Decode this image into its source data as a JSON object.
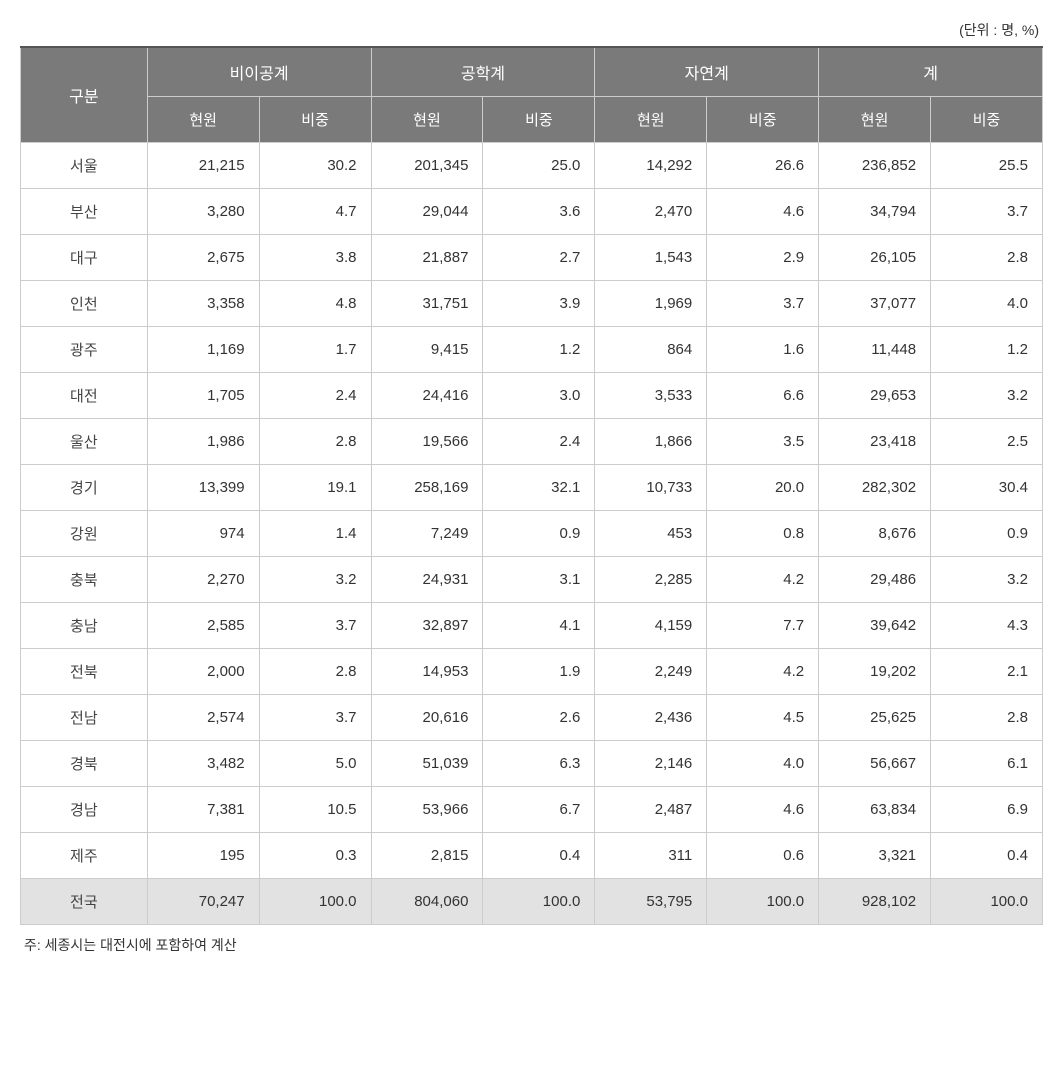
{
  "table": {
    "type": "table",
    "unit_label": "(단위 : 명, %)",
    "footnote": "주: 세종시는 대전시에 포함하여 계산",
    "header": {
      "group_label": "구분",
      "groups": [
        "비이공계",
        "공학계",
        "자연계",
        "계"
      ],
      "sub_headers": [
        "현원",
        "비중"
      ]
    },
    "colors": {
      "header_bg": "#7a7a7a",
      "header_text": "#ffffff",
      "border": "#cccccc",
      "top_border": "#555555",
      "total_row_bg": "#e2e2e2",
      "body_bg": "#ffffff",
      "text": "#333333"
    },
    "column_widths": [
      "12.4%",
      "10.95%",
      "10.95%",
      "10.95%",
      "10.95%",
      "10.95%",
      "10.95%",
      "10.95%",
      "10.95%"
    ],
    "font_sizes": {
      "header": 16,
      "sub_header": 15,
      "body": 15,
      "unit": 14,
      "footnote": 14
    },
    "rows": [
      {
        "label": "서울",
        "values": [
          "21,215",
          "30.2",
          "201,345",
          "25.0",
          "14,292",
          "26.6",
          "236,852",
          "25.5"
        ],
        "total": false
      },
      {
        "label": "부산",
        "values": [
          "3,280",
          "4.7",
          "29,044",
          "3.6",
          "2,470",
          "4.6",
          "34,794",
          "3.7"
        ],
        "total": false
      },
      {
        "label": "대구",
        "values": [
          "2,675",
          "3.8",
          "21,887",
          "2.7",
          "1,543",
          "2.9",
          "26,105",
          "2.8"
        ],
        "total": false
      },
      {
        "label": "인천",
        "values": [
          "3,358",
          "4.8",
          "31,751",
          "3.9",
          "1,969",
          "3.7",
          "37,077",
          "4.0"
        ],
        "total": false
      },
      {
        "label": "광주",
        "values": [
          "1,169",
          "1.7",
          "9,415",
          "1.2",
          "864",
          "1.6",
          "11,448",
          "1.2"
        ],
        "total": false
      },
      {
        "label": "대전",
        "values": [
          "1,705",
          "2.4",
          "24,416",
          "3.0",
          "3,533",
          "6.6",
          "29,653",
          "3.2"
        ],
        "total": false
      },
      {
        "label": "울산",
        "values": [
          "1,986",
          "2.8",
          "19,566",
          "2.4",
          "1,866",
          "3.5",
          "23,418",
          "2.5"
        ],
        "total": false
      },
      {
        "label": "경기",
        "values": [
          "13,399",
          "19.1",
          "258,169",
          "32.1",
          "10,733",
          "20.0",
          "282,302",
          "30.4"
        ],
        "total": false
      },
      {
        "label": "강원",
        "values": [
          "974",
          "1.4",
          "7,249",
          "0.9",
          "453",
          "0.8",
          "8,676",
          "0.9"
        ],
        "total": false
      },
      {
        "label": "충북",
        "values": [
          "2,270",
          "3.2",
          "24,931",
          "3.1",
          "2,285",
          "4.2",
          "29,486",
          "3.2"
        ],
        "total": false
      },
      {
        "label": "충남",
        "values": [
          "2,585",
          "3.7",
          "32,897",
          "4.1",
          "4,159",
          "7.7",
          "39,642",
          "4.3"
        ],
        "total": false
      },
      {
        "label": "전북",
        "values": [
          "2,000",
          "2.8",
          "14,953",
          "1.9",
          "2,249",
          "4.2",
          "19,202",
          "2.1"
        ],
        "total": false
      },
      {
        "label": "전남",
        "values": [
          "2,574",
          "3.7",
          "20,616",
          "2.6",
          "2,436",
          "4.5",
          "25,625",
          "2.8"
        ],
        "total": false
      },
      {
        "label": "경북",
        "values": [
          "3,482",
          "5.0",
          "51,039",
          "6.3",
          "2,146",
          "4.0",
          "56,667",
          "6.1"
        ],
        "total": false
      },
      {
        "label": "경남",
        "values": [
          "7,381",
          "10.5",
          "53,966",
          "6.7",
          "2,487",
          "4.6",
          "63,834",
          "6.9"
        ],
        "total": false
      },
      {
        "label": "제주",
        "values": [
          "195",
          "0.3",
          "2,815",
          "0.4",
          "311",
          "0.6",
          "3,321",
          "0.4"
        ],
        "total": false
      },
      {
        "label": "전국",
        "values": [
          "70,247",
          "100.0",
          "804,060",
          "100.0",
          "53,795",
          "100.0",
          "928,102",
          "100.0"
        ],
        "total": true
      }
    ]
  }
}
